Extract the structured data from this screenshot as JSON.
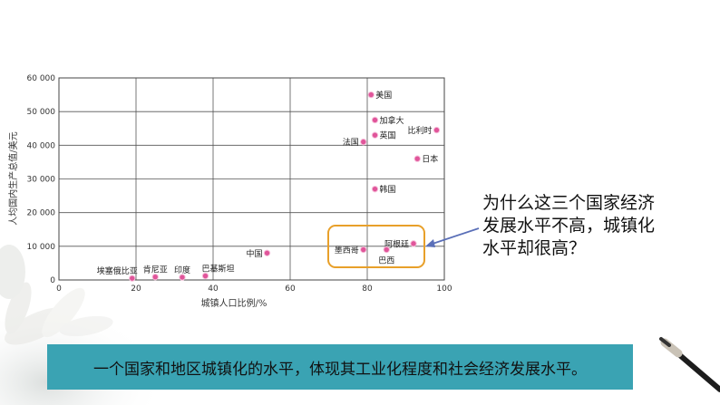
{
  "question": {
    "lines": [
      "为什么这三个国家经济",
      "发展水平不高，城镇化",
      "水平却很高？"
    ]
  },
  "banner": {
    "text": "一个国家和地区城镇化的水平，体现其工业化程度和社会经济发展水平。"
  },
  "colors": {
    "point": "#e0559a",
    "highlight_box": "#e8a02a",
    "arrow": "#5a6fb8",
    "banner_bg": "#3aa3b3"
  },
  "chart_data": {
    "type": "scatter",
    "title": "",
    "xlabel": "城镇人口比例/%",
    "ylabel": "人均国内生产总值/美元",
    "xlim": [
      0,
      100
    ],
    "ylim": [
      0,
      60000
    ],
    "grid": true,
    "x_ticks": [
      0,
      20,
      40,
      60,
      80,
      100
    ],
    "y_ticks": [
      0,
      10000,
      20000,
      30000,
      40000,
      50000,
      60000
    ],
    "x_tick_labels": [
      "0",
      "20",
      "40",
      "60",
      "80",
      "100"
    ],
    "y_tick_labels": [
      "0",
      "10 000",
      "20 000",
      "30 000",
      "40 000",
      "50 000",
      "60 000"
    ],
    "points": [
      {
        "label": "美国",
        "x": 81,
        "y": 55000,
        "label_side": "right"
      },
      {
        "label": "加拿大",
        "x": 82,
        "y": 47500,
        "label_side": "right"
      },
      {
        "label": "比利时",
        "x": 98,
        "y": 44500,
        "label_side": "left"
      },
      {
        "label": "英国",
        "x": 82,
        "y": 43000,
        "label_side": "right"
      },
      {
        "label": "法国",
        "x": 79,
        "y": 41000,
        "label_side": "left"
      },
      {
        "label": "日本",
        "x": 93,
        "y": 36000,
        "label_side": "right"
      },
      {
        "label": "韩国",
        "x": 82,
        "y": 27000,
        "label_side": "right"
      },
      {
        "label": "阿根廷",
        "x": 92,
        "y": 10800,
        "label_side": "left"
      },
      {
        "label": "墨西哥",
        "x": 79,
        "y": 9000,
        "label_side": "left"
      },
      {
        "label": "巴西",
        "x": 85,
        "y": 9000,
        "label_side": "below"
      },
      {
        "label": "中国",
        "x": 54,
        "y": 8000,
        "label_side": "left"
      },
      {
        "label": "巴基斯坦",
        "x": 38,
        "y": 1200,
        "label_side": "above-right"
      },
      {
        "label": "印度",
        "x": 32,
        "y": 800,
        "label_side": "above"
      },
      {
        "label": "肯尼亚",
        "x": 25,
        "y": 900,
        "label_side": "above"
      },
      {
        "label": "埃塞俄比亚",
        "x": 19,
        "y": 500,
        "label_side": "above-left"
      }
    ]
  }
}
